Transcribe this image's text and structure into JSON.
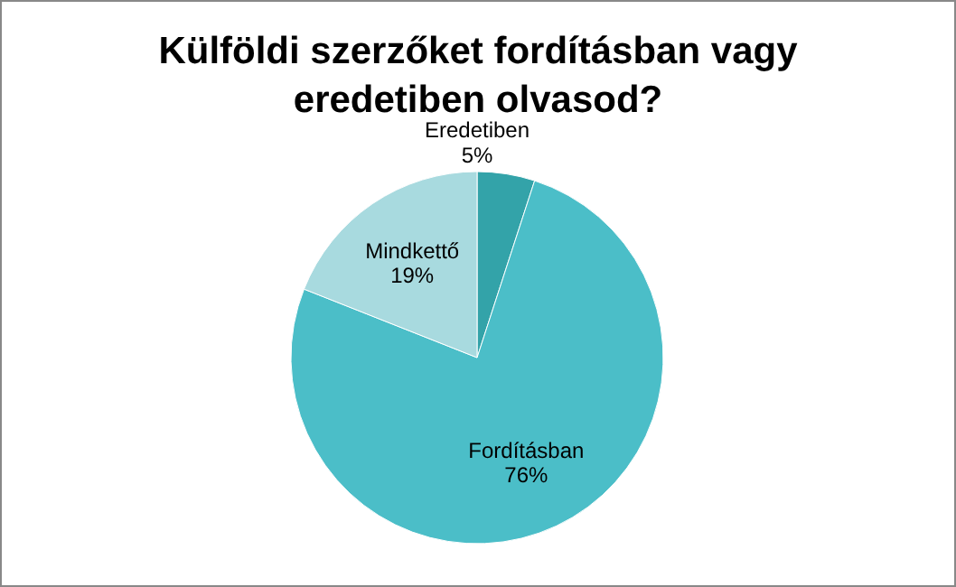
{
  "chart_data": {
    "type": "pie",
    "title": "Külföldi szerzőket fordításban vagy eredetiben olvasod?",
    "categories": [
      "Eredetiben",
      "Fordításban",
      "Mindkettő"
    ],
    "values": [
      5,
      76,
      19
    ],
    "value_labels": [
      "5%",
      "76%",
      "19%"
    ],
    "colors": [
      "#33a3a9",
      "#4bbec8",
      "#a8dadf"
    ]
  }
}
